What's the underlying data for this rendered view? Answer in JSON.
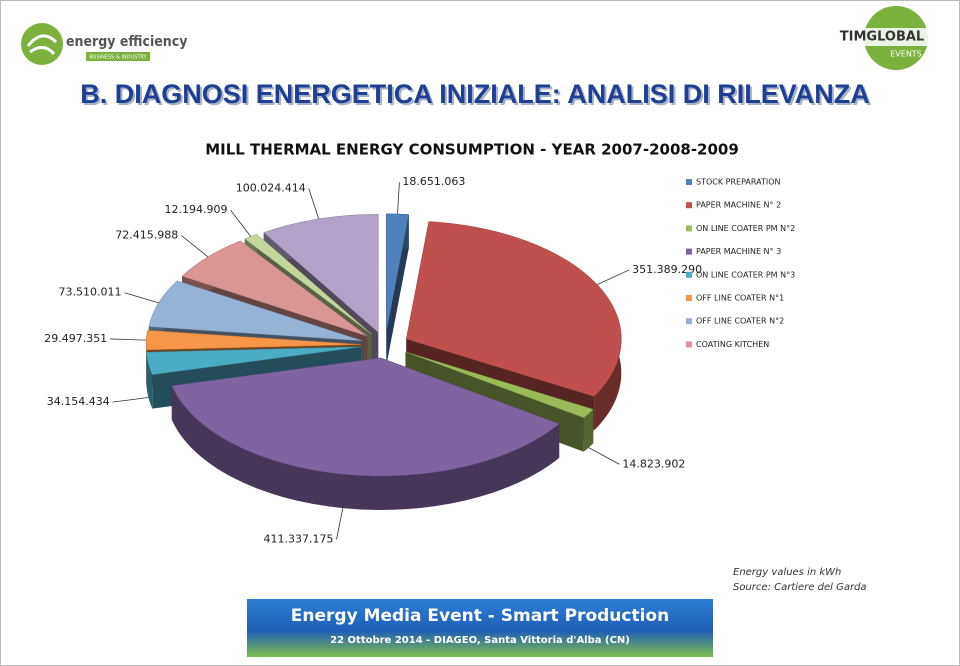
{
  "header": {
    "logo_text": "energy efficiency",
    "logo_subtext": "BUSINESS & INDUSTRY",
    "partner_logo": "TIMGLOBAL",
    "partner_logo_sub": "EVENTS",
    "title": "B. DIAGNOSI ENERGETICA INIZIALE: ANALISI DI RILEVANZA"
  },
  "chart_data": {
    "type": "pie3d",
    "title": "MILL THERMAL ENERGY CONSUMPTION - YEAR 2007-2008-2009",
    "categories": [
      "STOCK PREPARATION",
      "PAPER MACHINE N° 2",
      "ON LINE COATER PM N°2",
      "PAPER MACHINE N° 3",
      "ON LINE COATER PM N°3",
      "OFF LINE COATER N°1",
      "OFF LINE COATER N°2",
      "COATING KITCHEN",
      null,
      null
    ],
    "values": [
      18651063,
      351389290,
      14823902,
      411337175,
      34154434,
      29497351,
      73510011,
      72415988,
      12194909,
      100024414
    ],
    "value_labels": [
      "18.651.063",
      "351.389.290",
      "14.823.902",
      "411.337.175",
      "34.154.434",
      "29.497.351",
      "73.510.011",
      "72.415.988",
      "12.194.909",
      "100.024.414"
    ],
    "colors": [
      "#4f81bd",
      "#c0504d",
      "#9bbb59",
      "#8064a2",
      "#4bacc6",
      "#f79646",
      "#95b3d7",
      "#d99694",
      "#c3d69b",
      "#b3a2c7"
    ],
    "legend_position": "right"
  },
  "notes": [
    "Energy values in kWh",
    "Source: Cartiere del Garda"
  ],
  "banner": {
    "title": "Energy Media Event - Smart Production",
    "subtitle": "22 Ottobre 2014 - DIAGEO, Santa Vittoria d'Alba (CN)"
  }
}
